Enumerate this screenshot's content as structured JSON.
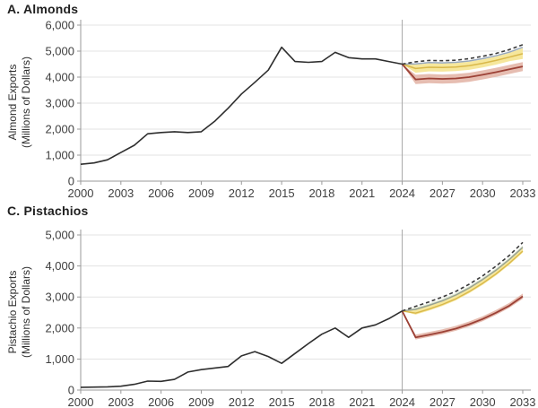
{
  "page": {
    "background": "#ffffff"
  },
  "chart_data": [
    {
      "type": "line",
      "panel": "A",
      "title": "A. Almonds",
      "ylabel_lines": [
        "Almond Exports",
        "(Millions of Dollars)"
      ],
      "xlabel": "",
      "ylim": [
        0,
        6000
      ],
      "ytick_values": [
        0,
        1000,
        2000,
        3000,
        4000,
        5000,
        6000
      ],
      "yticks": [
        "0",
        "1,000",
        "2,000",
        "3,000",
        "4,000",
        "5,000",
        "6,000"
      ],
      "xticks": [
        2000,
        2003,
        2006,
        2009,
        2012,
        2015,
        2018,
        2021,
        2024,
        2027,
        2030,
        2033
      ],
      "x_range": [
        2000,
        2033
      ],
      "grid": "horizontal",
      "legend": "none",
      "forecast_divider_year": 2024,
      "history": {
        "name": "historical-line",
        "color": "#2e2e2e",
        "start_year": 2000,
        "values": [
          650,
          700,
          820,
          1100,
          1380,
          1820,
          1870,
          1900,
          1870,
          1900,
          2300,
          2800,
          3350,
          3800,
          4270,
          5150,
          4600,
          4570,
          4600,
          4950,
          4750,
          4700,
          4700,
          4600,
          4500
        ]
      },
      "projections": {
        "start_year": 2024,
        "bands": [
          {
            "name": "yellow-scenario-band",
            "color": "#f6e79c",
            "top": [
              4500,
              4480,
              4530,
              4520,
              4540,
              4590,
              4680,
              4790,
              4930,
              5110
            ],
            "bottom": [
              4500,
              4170,
              4220,
              4210,
              4230,
              4280,
              4370,
              4480,
              4610,
              4700
            ]
          },
          {
            "name": "pink-scenario-band",
            "color": "#e6bdb1",
            "top": [
              4500,
              4090,
              4120,
              4100,
              4120,
              4170,
              4260,
              4360,
              4470,
              4580
            ],
            "bottom": [
              4500,
              3730,
              3770,
              3750,
              3770,
              3820,
              3910,
              4010,
              4120,
              4230
            ]
          }
        ],
        "lines": [
          {
            "name": "blue-gray-scenario-line",
            "color": "#97a7ba",
            "width": 1.5,
            "values": [
              4500,
              4510,
              4560,
              4550,
              4570,
              4620,
              4710,
              4820,
              4960,
              5150
            ]
          },
          {
            "name": "gold-scenario-line",
            "color": "#d9b84a",
            "width": 1.5,
            "values": [
              4500,
              4330,
              4380,
              4370,
              4390,
              4440,
              4530,
              4640,
              4770,
              4900
            ]
          },
          {
            "name": "red-scenario-line",
            "color": "#9c4136",
            "width": 1.8,
            "values": [
              4500,
              3910,
              3950,
              3930,
              3950,
              4000,
              4090,
              4190,
              4300,
              4410
            ]
          },
          {
            "name": "dashed-baseline-line",
            "color": "#3a3a3a",
            "width": 1.6,
            "dash": "4 3",
            "values": [
              4500,
              4590,
              4640,
              4630,
              4650,
              4710,
              4800,
              4910,
              5060,
              5250
            ]
          }
        ]
      }
    },
    {
      "type": "line",
      "panel": "C",
      "title": "C. Pistachios",
      "ylabel_lines": [
        "Pistachio Exports",
        "(Millions of Dollars)"
      ],
      "xlabel": "",
      "ylim": [
        0,
        5000
      ],
      "ytick_values": [
        0,
        1000,
        2000,
        3000,
        4000,
        5000
      ],
      "yticks": [
        "0",
        "1,000",
        "2,000",
        "3,000",
        "4,000",
        "5,000"
      ],
      "xticks": [
        2000,
        2003,
        2006,
        2009,
        2012,
        2015,
        2018,
        2021,
        2024,
        2027,
        2030,
        2033
      ],
      "x_range": [
        2000,
        2033
      ],
      "grid": "horizontal",
      "legend": "none",
      "forecast_divider_year": 2024,
      "history": {
        "name": "historical-line",
        "color": "#2e2e2e",
        "start_year": 2000,
        "values": [
          90,
          95,
          105,
          125,
          185,
          290,
          280,
          345,
          580,
          660,
          710,
          760,
          1100,
          1240,
          1080,
          860,
          1180,
          1500,
          1800,
          2000,
          1700,
          2000,
          2100,
          2300,
          2550
        ]
      },
      "projections": {
        "start_year": 2024,
        "bands": [
          {
            "name": "green-scenario-band",
            "color": "#e2ead3",
            "top": [
              2550,
              2660,
              2790,
              2940,
              3120,
              3350,
              3620,
              3920,
              4270,
              4660
            ],
            "bottom": [
              2550,
              2600,
              2730,
              2880,
              3060,
              3290,
              3560,
              3860,
              4210,
              4600
            ]
          },
          {
            "name": "yellow-scenario-band",
            "color": "#f6e79c",
            "top": [
              2550,
              2600,
              2730,
              2880,
              3060,
              3290,
              3560,
              3860,
              4210,
              4600
            ],
            "bottom": [
              2550,
              2430,
              2560,
              2710,
              2890,
              3120,
              3390,
              3690,
              4040,
              4430
            ]
          },
          {
            "name": "pink-scenario-band",
            "color": "#e6bdb1",
            "top": [
              2550,
              1790,
              1870,
              1960,
              2070,
              2210,
              2380,
              2580,
              2810,
              3110
            ],
            "bottom": [
              2550,
              1630,
              1710,
              1800,
              1910,
              2050,
              2220,
              2420,
              2650,
              2940
            ]
          }
        ],
        "lines": [
          {
            "name": "gray-green-scenario-line",
            "color": "#98a294",
            "width": 1.5,
            "values": [
              2550,
              2600,
              2730,
              2880,
              3060,
              3290,
              3560,
              3860,
              4210,
              4600
            ]
          },
          {
            "name": "gold-scenario-line",
            "color": "#d9b84a",
            "width": 1.4,
            "values": [
              2550,
              2480,
              2610,
              2760,
              2940,
              3170,
              3440,
              3740,
              4090,
              4480
            ]
          },
          {
            "name": "red-scenario-line",
            "color": "#9c4136",
            "width": 1.8,
            "values": [
              2550,
              1700,
              1780,
              1870,
              1980,
              2120,
              2290,
              2490,
              2720,
              3020
            ]
          },
          {
            "name": "dashed-baseline-line",
            "color": "#3a3a3a",
            "width": 1.6,
            "dash": "4 3",
            "values": [
              2550,
              2700,
              2840,
              3000,
              3180,
              3410,
              3680,
              3990,
              4340,
              4760
            ]
          }
        ]
      }
    }
  ],
  "style": {
    "grid_color": "#e3e3e3",
    "axis_color": "#9a9a9a",
    "divider_color": "#a8a8a8",
    "tick_label_color": "#3f3f3f"
  }
}
